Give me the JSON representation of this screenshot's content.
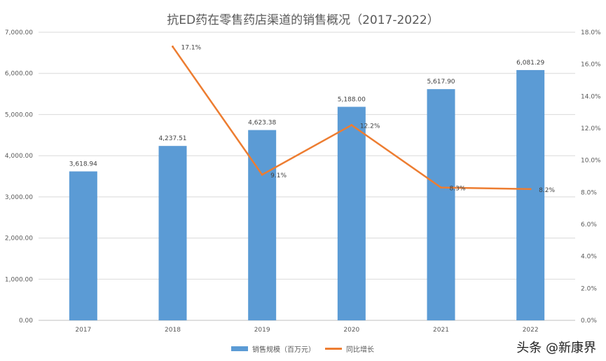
{
  "chart_data": {
    "type": "bar",
    "title": "抗ED药在零售药店渠道的销售概况（2017-2022）",
    "categories": [
      "2017",
      "2018",
      "2019",
      "2020",
      "2021",
      "2022"
    ],
    "series": [
      {
        "name": "销售规模（百万元）",
        "type": "bar",
        "axis": "left",
        "color": "#5b9bd5",
        "values": [
          3618.94,
          4237.51,
          4623.38,
          5188.0,
          5617.9,
          6081.29
        ],
        "labels": [
          "3,618.94",
          "4,237.51",
          "4,623.38",
          "5,188.00",
          "5,617.90",
          "6,081.29"
        ]
      },
      {
        "name": "同比增长",
        "type": "line",
        "axis": "right",
        "color": "#ed7d31",
        "values": [
          null,
          17.1,
          9.1,
          12.2,
          8.3,
          8.2
        ],
        "labels": [
          "",
          "17.1%",
          "9.1%",
          "12.2%",
          "8.3%",
          "8.2%"
        ]
      }
    ],
    "ylim_left": [
      0,
      7000
    ],
    "yticks_left": [
      "0.00",
      "1,000.00",
      "2,000.00",
      "3,000.00",
      "4,000.00",
      "5,000.00",
      "6,000.00",
      "7,000.00"
    ],
    "ylim_right": [
      0,
      18
    ],
    "yticks_right": [
      "0.0%",
      "2.0%",
      "4.0%",
      "6.0%",
      "8.0%",
      "10.0%",
      "12.0%",
      "14.0%",
      "16.0%",
      "18.0%"
    ],
    "grid": true,
    "legend_position": "bottom"
  },
  "watermark": "头条 @新康界"
}
